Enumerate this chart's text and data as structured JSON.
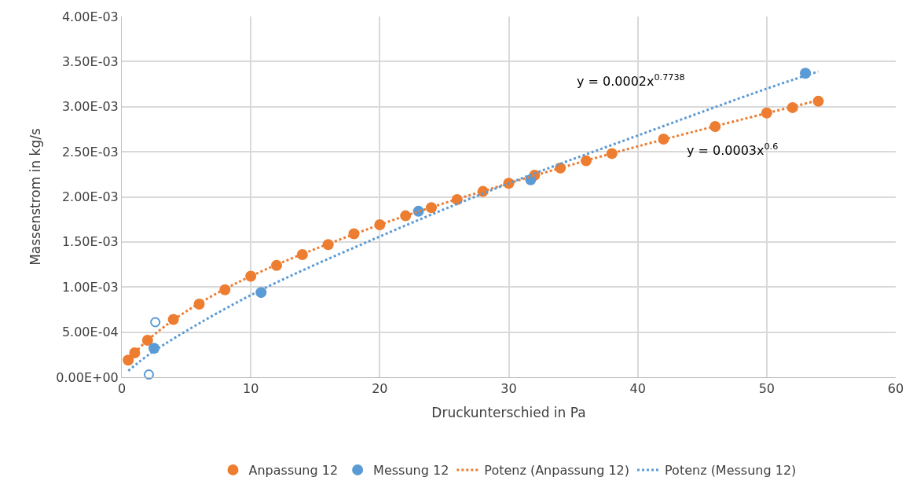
{
  "chart_data": {
    "type": "scatter",
    "xlabel": "Druckunterschied in Pa",
    "ylabel": "Massenstrom in kg/s",
    "xlim": [
      0,
      60
    ],
    "xticks": [
      0,
      10,
      20,
      30,
      40,
      50,
      60
    ],
    "ylim": [
      0,
      0.004
    ],
    "yticks": [
      {
        "value": 0,
        "label": "0.00E+00"
      },
      {
        "value": 0.0005,
        "label": "5.00E-04"
      },
      {
        "value": 0.001,
        "label": "1.00E-03"
      },
      {
        "value": 0.0015,
        "label": "1.50E-03"
      },
      {
        "value": 0.002,
        "label": "2.00E-03"
      },
      {
        "value": 0.0025,
        "label": "2.50E-03"
      },
      {
        "value": 0.003,
        "label": "3.00E-03"
      },
      {
        "value": 0.0035,
        "label": "3.50E-03"
      },
      {
        "value": 0.004,
        "label": "4.00E-03"
      }
    ],
    "grid": true,
    "legend": "bottom",
    "series": [
      {
        "name": "Anpassung 12",
        "color": "#ed7d31",
        "marker": "circle",
        "x": [
          0.5,
          1,
          2,
          4,
          6,
          8,
          10,
          12,
          14,
          16,
          18,
          20,
          22,
          24,
          26,
          28,
          30,
          32,
          34,
          36,
          38,
          42,
          46,
          50,
          52,
          54
        ],
        "values": [
          0.00019,
          0.00027,
          0.00041,
          0.00064,
          0.00081,
          0.00097,
          0.00112,
          0.00124,
          0.00136,
          0.00147,
          0.00159,
          0.00169,
          0.00179,
          0.00188,
          0.00197,
          0.00206,
          0.00215,
          0.00224,
          0.00232,
          0.0024,
          0.00248,
          0.00264,
          0.00278,
          0.00293,
          0.00299,
          0.00306
        ]
      },
      {
        "name": "Messung 12",
        "color": "#5b9bd5",
        "marker": "circle",
        "x": [
          2.5,
          10.8,
          23,
          31.7,
          53
        ],
        "values": [
          0.00032,
          0.00094,
          0.00184,
          0.00219,
          0.00337
        ]
      },
      {
        "color": "#5b9bd5",
        "marker": "circle-open",
        "x": [
          2.6,
          2.1
        ],
        "values": [
          0.00061,
          3e-05
        ]
      },
      {
        "name": "Potenz (Anpassung 12)",
        "type": "line",
        "color": "#ed7d31",
        "marker": "none",
        "line_style": "dotted",
        "x": [
          0.5,
          2,
          5,
          10,
          20,
          30,
          40,
          54
        ],
        "values": [
          0.00019,
          0.00041,
          0.00073,
          0.00112,
          0.00169,
          0.00215,
          0.00256,
          0.00307
        ]
      },
      {
        "name": "Potenz (Messung 12)",
        "type": "line",
        "color": "#5b9bd5",
        "marker": "none",
        "line_style": "dotted",
        "x": [
          0.5,
          2.5,
          10,
          20,
          30,
          40,
          50,
          54
        ],
        "values": [
          7e-05,
          0.00029,
          0.00091,
          0.00156,
          0.00215,
          0.00268,
          0.0032,
          0.00339
        ]
      }
    ],
    "annotations": [
      "y = 0.0002x$^{0.7738}$",
      "y = 0.0003x$^{0.6}$"
    ]
  }
}
